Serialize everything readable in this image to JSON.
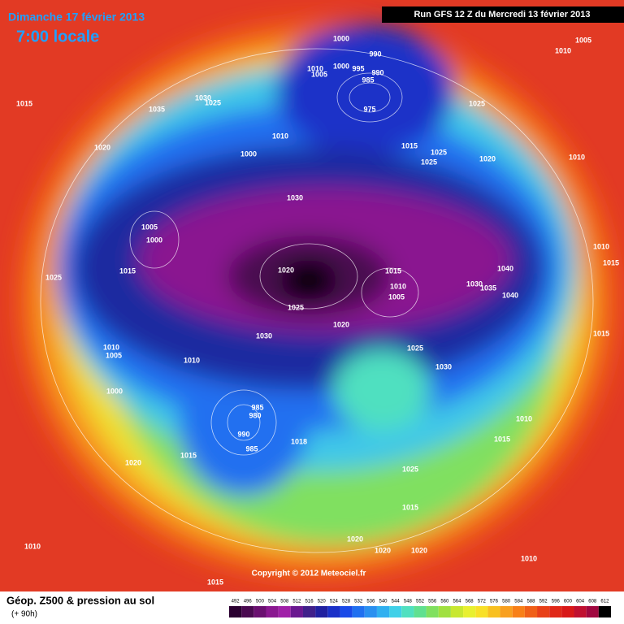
{
  "header": {
    "date": "Dimanche 17 février 2013",
    "time": "7:00 locale",
    "run": "Run GFS 12 Z du Mercredi 13 février 2013"
  },
  "map": {
    "copyright": "Copyright © 2012 Meteociel.fr",
    "isobar_labels": [
      1000,
      990,
      1005,
      1010,
      1015,
      1035,
      1030,
      1025,
      1010,
      1000,
      1005,
      995,
      990,
      985,
      975,
      1025,
      1020,
      1000,
      1010,
      1015,
      1025,
      1025,
      1020,
      1010,
      1030,
      1005,
      1000,
      1015,
      1025,
      1020,
      1015,
      1010,
      1005,
      1030,
      1035,
      1040,
      1040,
      1010,
      1015,
      1025,
      1020,
      1030,
      1010,
      1005,
      1010,
      1025,
      1030,
      1000,
      985,
      980,
      990,
      985,
      1015,
      1020,
      1018,
      1010,
      1015,
      1025,
      1015,
      1010,
      1020,
      1020,
      1020,
      1010,
      1015,
      1015
    ]
  },
  "footer": {
    "title": "Géop. Z500 & pression au sol",
    "lead": "(+ 90h)",
    "scale": [
      492,
      496,
      500,
      504,
      508,
      512,
      516,
      520,
      524,
      528,
      532,
      536,
      540,
      544,
      548,
      552,
      556,
      560,
      564,
      568,
      572,
      576,
      580,
      584,
      588,
      592,
      596,
      600,
      604,
      608,
      612
    ],
    "scale_colors": [
      "#2a0030",
      "#4a0a50",
      "#6a1070",
      "#8a1890",
      "#a020a8",
      "#6a1890",
      "#40208a",
      "#2020a0",
      "#1a30c8",
      "#1a4ae8",
      "#2070f0",
      "#2a90f0",
      "#30b0f0",
      "#40d0e8",
      "#50e0c0",
      "#60e090",
      "#80e060",
      "#a0e040",
      "#c8e830",
      "#e8f030",
      "#f8e028",
      "#f8c020",
      "#f8a020",
      "#f88018",
      "#f06018",
      "#e84018",
      "#e02818",
      "#d81818",
      "#c01030",
      "#a00840",
      "#000000"
    ]
  }
}
